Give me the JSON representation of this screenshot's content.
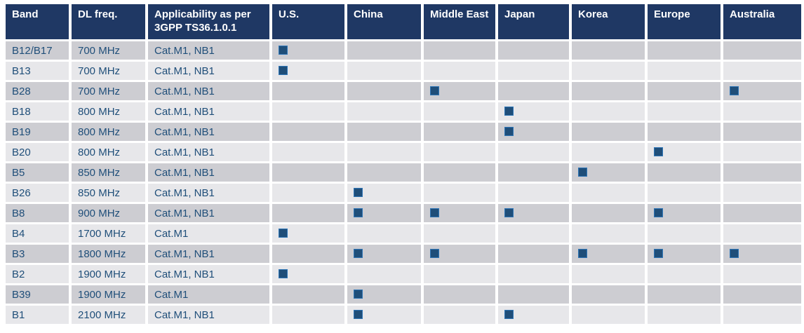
{
  "colors": {
    "page_bg": "#FFFFFF",
    "header_bg": "#1F3864",
    "header_text": "#FFFFFF",
    "body_text": "#1F4E79",
    "row_odd_bg": "#CDCDD2",
    "row_even_bg": "#E7E7EA",
    "marker_fill": "#1F4E79",
    "marker_edge": "#2E75B6"
  },
  "table": {
    "columns": [
      "Band",
      "DL freq.",
      "Applicability as per 3GPP TS36.1.0.1",
      "U.S.",
      "China",
      "Middle East",
      "Japan",
      "Korea",
      "Europe",
      "Australia"
    ],
    "region_columns": [
      "U.S.",
      "China",
      "Middle East",
      "Japan",
      "Korea",
      "Europe",
      "Australia"
    ],
    "marker_icon": "filled-square",
    "rows": [
      {
        "band": "B12/B17",
        "dl_freq": "700 MHz",
        "applicability": "Cat.M1, NB1",
        "regions": [
          true,
          false,
          false,
          false,
          false,
          false,
          false
        ]
      },
      {
        "band": "B13",
        "dl_freq": "700 MHz",
        "applicability": "Cat.M1, NB1",
        "regions": [
          true,
          false,
          false,
          false,
          false,
          false,
          false
        ]
      },
      {
        "band": "B28",
        "dl_freq": "700 MHz",
        "applicability": "Cat.M1, NB1",
        "regions": [
          false,
          false,
          true,
          false,
          false,
          false,
          true
        ]
      },
      {
        "band": "B18",
        "dl_freq": "800 MHz",
        "applicability": "Cat.M1, NB1",
        "regions": [
          false,
          false,
          false,
          true,
          false,
          false,
          false
        ]
      },
      {
        "band": "B19",
        "dl_freq": "800 MHz",
        "applicability": "Cat.M1, NB1",
        "regions": [
          false,
          false,
          false,
          true,
          false,
          false,
          false
        ]
      },
      {
        "band": "B20",
        "dl_freq": "800 MHz",
        "applicability": "Cat.M1, NB1",
        "regions": [
          false,
          false,
          false,
          false,
          false,
          true,
          false
        ]
      },
      {
        "band": "B5",
        "dl_freq": "850 MHz",
        "applicability": "Cat.M1, NB1",
        "regions": [
          false,
          false,
          false,
          false,
          true,
          false,
          false
        ]
      },
      {
        "band": "B26",
        "dl_freq": "850 MHz",
        "applicability": "Cat.M1, NB1",
        "regions": [
          false,
          true,
          false,
          false,
          false,
          false,
          false
        ]
      },
      {
        "band": "B8",
        "dl_freq": "900 MHz",
        "applicability": "Cat.M1, NB1",
        "regions": [
          false,
          true,
          true,
          true,
          false,
          true,
          false
        ]
      },
      {
        "band": "B4",
        "dl_freq": "1700 MHz",
        "applicability": "Cat.M1",
        "regions": [
          true,
          false,
          false,
          false,
          false,
          false,
          false
        ]
      },
      {
        "band": "B3",
        "dl_freq": "1800 MHz",
        "applicability": "Cat.M1, NB1",
        "regions": [
          false,
          true,
          true,
          false,
          true,
          true,
          true
        ]
      },
      {
        "band": "B2",
        "dl_freq": "1900 MHz",
        "applicability": "Cat.M1, NB1",
        "regions": [
          true,
          false,
          false,
          false,
          false,
          false,
          false
        ]
      },
      {
        "band": "B39",
        "dl_freq": "1900 MHz",
        "applicability": "Cat.M1",
        "regions": [
          false,
          true,
          false,
          false,
          false,
          false,
          false
        ]
      },
      {
        "band": "B1",
        "dl_freq": "2100 MHz",
        "applicability": "Cat.M1, NB1",
        "regions": [
          false,
          true,
          false,
          true,
          false,
          false,
          false
        ]
      }
    ]
  }
}
